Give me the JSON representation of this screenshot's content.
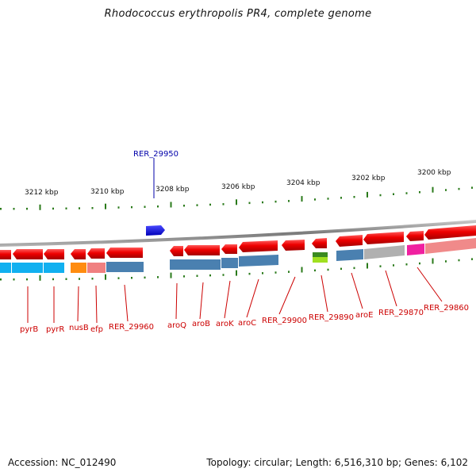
{
  "title": "Rhodococcus erythropolis PR4, complete genome",
  "footer": {
    "accession": "Accession: NC_012490",
    "summary": "Topology: circular; Length: 6,516,310 bp; Genes: 6,102"
  },
  "colors": {
    "forward_gene": "#e00000",
    "reverse_gene": "#e00000",
    "highlight_gene": "#0000dd",
    "backbone": "#8a8a8a",
    "tick": "#2a7a1a",
    "label_forward": "#0000aa",
    "label_reverse": "#cc0000"
  },
  "scale_labels": [
    "3212 kbp",
    "3210 kbp",
    "3208 kbp",
    "3206 kbp",
    "3204 kbp",
    "3202 kbp",
    "3200 kbp"
  ],
  "top_genes": [
    {
      "label": "RER_29950",
      "highlight": true
    }
  ],
  "bottom_genes": [
    {
      "label": "pyrB"
    },
    {
      "label": "pyrR"
    },
    {
      "label": "nusB"
    },
    {
      "label": "efp"
    },
    {
      "label": "RER_29960"
    },
    {
      "label": "aroQ"
    },
    {
      "label": "aroB"
    },
    {
      "label": "aroK"
    },
    {
      "label": "aroC"
    },
    {
      "label": "RER_29900"
    },
    {
      "label": "RER_29890"
    },
    {
      "label": "aroE"
    },
    {
      "label": "RER_29870"
    },
    {
      "label": "RER_29860"
    }
  ]
}
